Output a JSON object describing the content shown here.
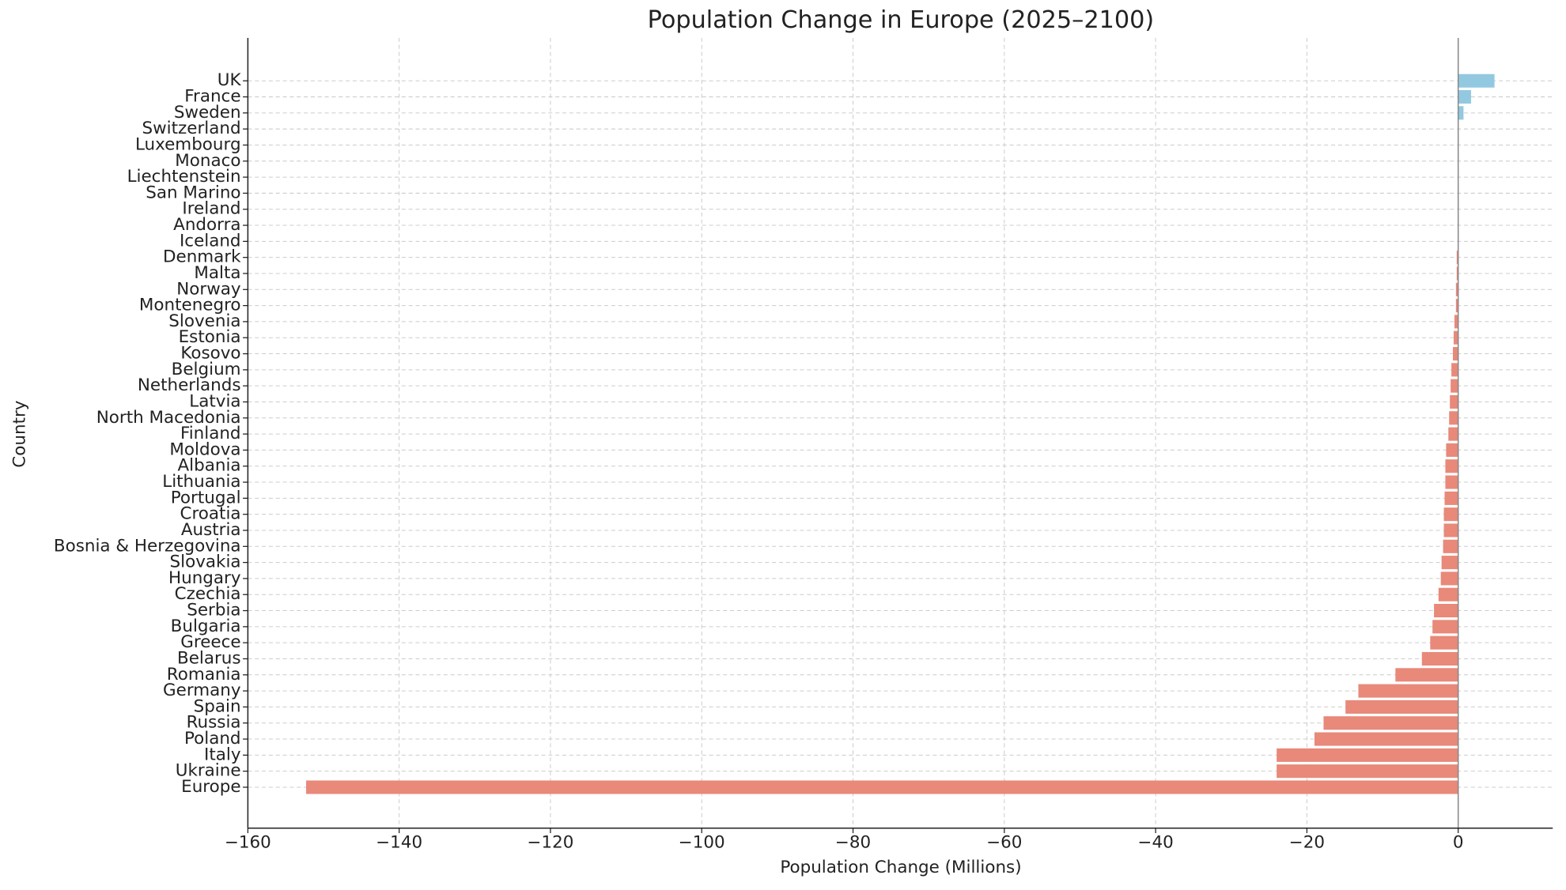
{
  "chart_data": {
    "type": "barh",
    "title": "Population Change in Europe (2025–2100)",
    "x_label": "Population Change (Millions)",
    "y_label": "Country",
    "categories": [
      "UK",
      "France",
      "Sweden",
      "Switzerland",
      "Luxembourg",
      "Monaco",
      "Liechtenstein",
      "San Marino",
      "Ireland",
      "Andorra",
      "Iceland",
      "Denmark",
      "Malta",
      "Norway",
      "Montenegro",
      "Slovenia",
      "Estonia",
      "Kosovo",
      "Belgium",
      "Netherlands",
      "Latvia",
      "North Macedonia",
      "Finland",
      "Moldova",
      "Albania",
      "Lithuania",
      "Portugal",
      "Croatia",
      "Austria",
      "Bosnia & Herzegovina",
      "Slovakia",
      "Hungary",
      "Czechia",
      "Serbia",
      "Bulgaria",
      "Greece",
      "Belarus",
      "Romania",
      "Germany",
      "Spain",
      "Russia",
      "Poland",
      "Italy",
      "Ukraine",
      "Europe"
    ],
    "values": [
      4.8,
      1.7,
      0.7,
      0,
      0,
      0,
      0,
      0,
      0,
      0,
      0,
      -0.2,
      -0.2,
      -0.3,
      -0.3,
      -0.5,
      -0.6,
      -0.7,
      -0.9,
      -1.0,
      -1.1,
      -1.2,
      -1.3,
      -1.6,
      -1.7,
      -1.7,
      -1.8,
      -1.9,
      -1.9,
      -2.0,
      -2.2,
      -2.3,
      -2.6,
      -3.2,
      -3.4,
      -3.7,
      -4.8,
      -8.3,
      -13.2,
      -14.9,
      -17.8,
      -19.0,
      -24.0,
      -24.0,
      -152.3
    ],
    "positive_color": "#93c9e0",
    "negative_color": "#e8897a",
    "xlim": [
      -160,
      12.5
    ],
    "xticks": [
      {
        "value": -160,
        "label": "−160"
      },
      {
        "value": -140,
        "label": "−140"
      },
      {
        "value": -120,
        "label": "−120"
      },
      {
        "value": -100,
        "label": "−100"
      },
      {
        "value": -80,
        "label": "−80"
      },
      {
        "value": -60,
        "label": "−60"
      },
      {
        "value": -40,
        "label": "−40"
      },
      {
        "value": -20,
        "label": "−20"
      },
      0
    ],
    "grid": true
  }
}
